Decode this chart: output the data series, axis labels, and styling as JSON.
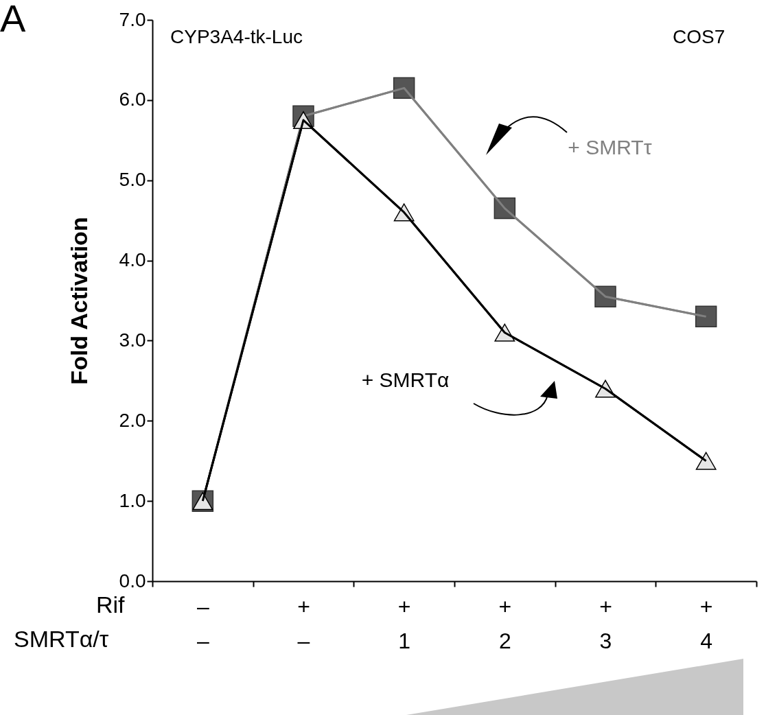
{
  "chart_data": {
    "type": "line",
    "ylabel": "Fold Activation",
    "annotations": [
      "A",
      "CYP3A4-tk-Luc",
      "COS7",
      "Rif",
      "SMRTα/τ"
    ],
    "categories": [
      "–\n–",
      "+\n–",
      "+\n1",
      "+\n2",
      "+\n3",
      "+\n4"
    ],
    "series": [
      {
        "name": "+ SMRTτ",
        "color": "#808080",
        "marker": "square",
        "values": [
          1.0,
          5.8,
          6.15,
          4.65,
          3.55,
          3.3
        ]
      },
      {
        "name": "+ SMRTα",
        "color": "#000000",
        "marker": "triangle",
        "values": [
          1.0,
          5.75,
          4.6,
          3.1,
          2.4,
          1.5
        ]
      }
    ],
    "ylim": [
      0,
      7
    ],
    "yticks": [
      {
        "value": 0,
        "label": "0.0"
      },
      {
        "value": 1,
        "label": "1.0"
      },
      {
        "value": 2,
        "label": "2.0"
      },
      {
        "value": 3,
        "label": "3.0"
      },
      {
        "value": 4,
        "label": "4.0"
      },
      {
        "value": 5,
        "label": "5.0"
      },
      {
        "value": 6,
        "label": "6.0"
      },
      {
        "value": 7,
        "label": "7.0"
      }
    ],
    "grid": false,
    "line_style": "solid"
  }
}
